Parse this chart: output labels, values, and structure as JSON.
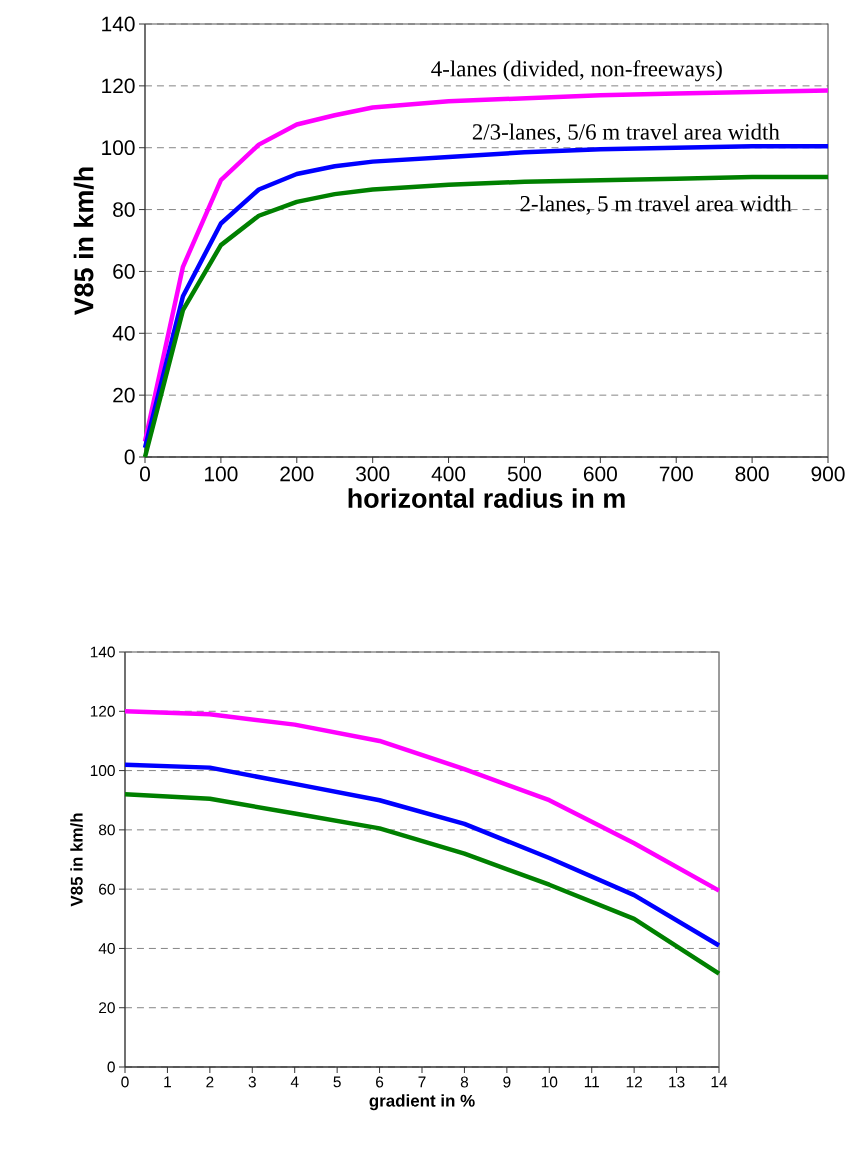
{
  "chart_data": [
    {
      "type": "line",
      "xlabel": "horizontal radius in m",
      "ylabel": "V85 in km/h",
      "x": [
        0,
        50,
        100,
        150,
        200,
        250,
        300,
        400,
        500,
        600,
        700,
        800,
        900
      ],
      "series": [
        {
          "name": "4-lanes (divided, non-freeways)",
          "color": "#ff00ff",
          "values": [
            5,
            61.5,
            89.5,
            101,
            107.5,
            110.5,
            113,
            115,
            116,
            117,
            117.5,
            118,
            118.5
          ]
        },
        {
          "name": "2/3-lanes, 5/6 m travel area width",
          "color": "#0000ff",
          "values": [
            3,
            52,
            75.5,
            86.5,
            91.5,
            94,
            95.5,
            97,
            98.5,
            99.5,
            100,
            100.5,
            100.5
          ]
        },
        {
          "name": "2-lanes, 5 m travel area width",
          "color": "#008000",
          "values": [
            0,
            47.5,
            68.5,
            78,
            82.5,
            85,
            86.5,
            88,
            89,
            89.5,
            90,
            90.5,
            90.5
          ]
        }
      ],
      "xlim": [
        0,
        900
      ],
      "ylim": [
        0,
        140
      ],
      "xticks": [
        0,
        100,
        200,
        300,
        400,
        500,
        600,
        700,
        800,
        900
      ],
      "yticks": [
        0,
        20,
        40,
        60,
        80,
        100,
        120,
        140
      ],
      "grid": "y"
    },
    {
      "type": "line",
      "xlabel": "gradient in %",
      "ylabel": "V85 in km/h",
      "x": [
        0,
        2,
        4,
        6,
        8,
        10,
        12,
        14
      ],
      "series": [
        {
          "color": "#ff00ff",
          "values": [
            120,
            119,
            115.5,
            110,
            100.5,
            90,
            75.5,
            59.5
          ]
        },
        {
          "color": "#0000ff",
          "values": [
            102,
            101,
            95.5,
            90,
            82,
            70.5,
            58,
            41
          ]
        },
        {
          "color": "#008000",
          "values": [
            92,
            90.5,
            85.5,
            80.5,
            72,
            61.5,
            50,
            31.5
          ]
        }
      ],
      "xlim": [
        0,
        14
      ],
      "ylim": [
        0,
        140
      ],
      "xticks": [
        0,
        1,
        2,
        3,
        4,
        5,
        6,
        7,
        8,
        9,
        10,
        11,
        12,
        13,
        14
      ],
      "yticks": [
        0,
        20,
        40,
        60,
        80,
        100,
        120,
        140
      ],
      "grid": "y"
    }
  ]
}
